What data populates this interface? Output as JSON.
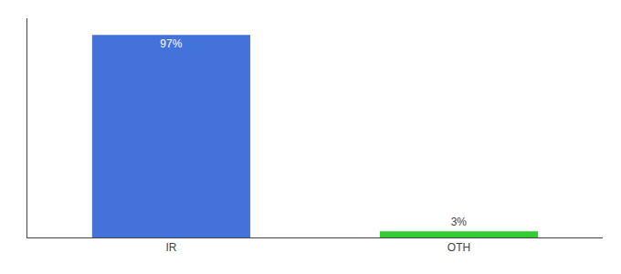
{
  "chart_data": {
    "type": "bar",
    "categories": [
      "IR",
      "OTH"
    ],
    "values": [
      97,
      3
    ],
    "value_labels": [
      "97%",
      "3%"
    ],
    "colors": [
      "#4472db",
      "#33cc33"
    ],
    "ylim": [
      0,
      105
    ],
    "data_labels": true,
    "tick_labels": "x",
    "grid": false
  }
}
